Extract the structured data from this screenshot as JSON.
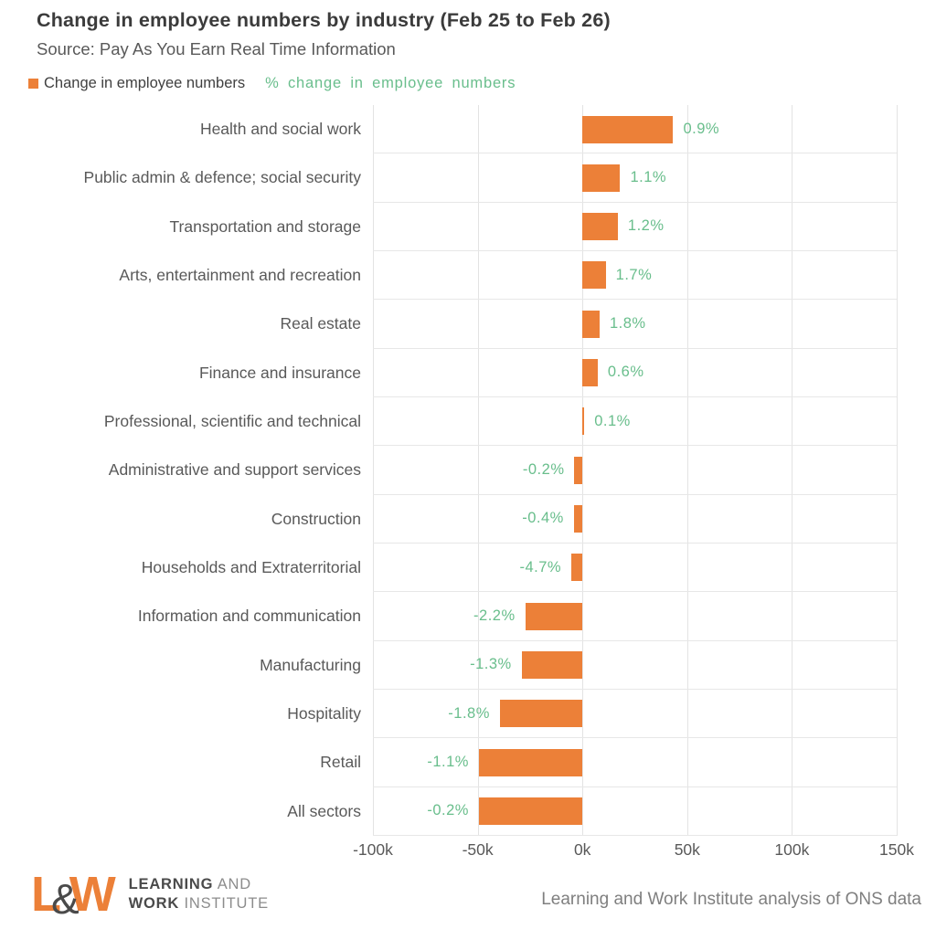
{
  "header": {
    "title": "Change in employee numbers by industry (Feb 25 to Feb 26)",
    "subtitle": "Source: Pay As You Earn Real Time Information"
  },
  "legend": {
    "bar_series_label": "Change in employee numbers",
    "pct_series_label": "% change in employee numbers"
  },
  "colors": {
    "bar_orange": "#ec8038",
    "pct_green": "#69be8c",
    "title_gray": "#3b3b3b",
    "text_gray": "#595959",
    "gridline": "#e3e3e3"
  },
  "chart_data": {
    "type": "bar",
    "orientation": "horizontal",
    "title": "Change in employee numbers by industry (Feb 25 to Feb 26)",
    "subtitle": "Source: Pay As You Earn Real Time Information",
    "categories": [
      "Health and social work",
      "Public admin & defence; social security",
      "Transportation and storage",
      "Arts, entertainment and recreation",
      "Real estate",
      "Finance and insurance",
      "Professional, scientific and technical",
      "Administrative and support services",
      "Construction",
      "Households and Extraterritorial",
      "Information and communication",
      "Manufacturing",
      "Hospitality",
      "Retail",
      "All sectors"
    ],
    "series": [
      {
        "name": "Change in employee numbers",
        "unit": "thousands",
        "values_k": [
          43.3,
          18.0,
          16.9,
          11.1,
          8.2,
          7.3,
          0.9,
          -3.8,
          -4.1,
          -5.3,
          -27.3,
          -29.0,
          -39.4,
          -49.4,
          -49.4
        ]
      },
      {
        "name": "% change in employee numbers",
        "labels": [
          "0.9%",
          "1.1%",
          "1.2%",
          "1.7%",
          "1.8%",
          "0.6%",
          "0.1%",
          "-0.2%",
          "-0.4%",
          "-4.7%",
          "-2.2%",
          "-1.3%",
          "-1.8%",
          "-1.1%",
          "-0.2%"
        ]
      }
    ],
    "x_axis": {
      "tick_labels": [
        "-100k",
        "-50k",
        "0k",
        "50k",
        "100k",
        "150k"
      ],
      "tick_values_k": [
        -100,
        -50,
        0,
        50,
        100,
        150
      ],
      "range_k": [
        -100,
        150
      ]
    },
    "grid": true,
    "legend_position": "top"
  },
  "footer": {
    "logo": {
      "letter_l": "L",
      "ampersand": "&",
      "letter_w": "W",
      "line1_bold": "LEARNING",
      "line1_light": " AND",
      "line2_bold": "WORK",
      "line2_light": " INSTITUTE"
    },
    "credit": "Learning and Work Institute analysis of ONS data"
  }
}
